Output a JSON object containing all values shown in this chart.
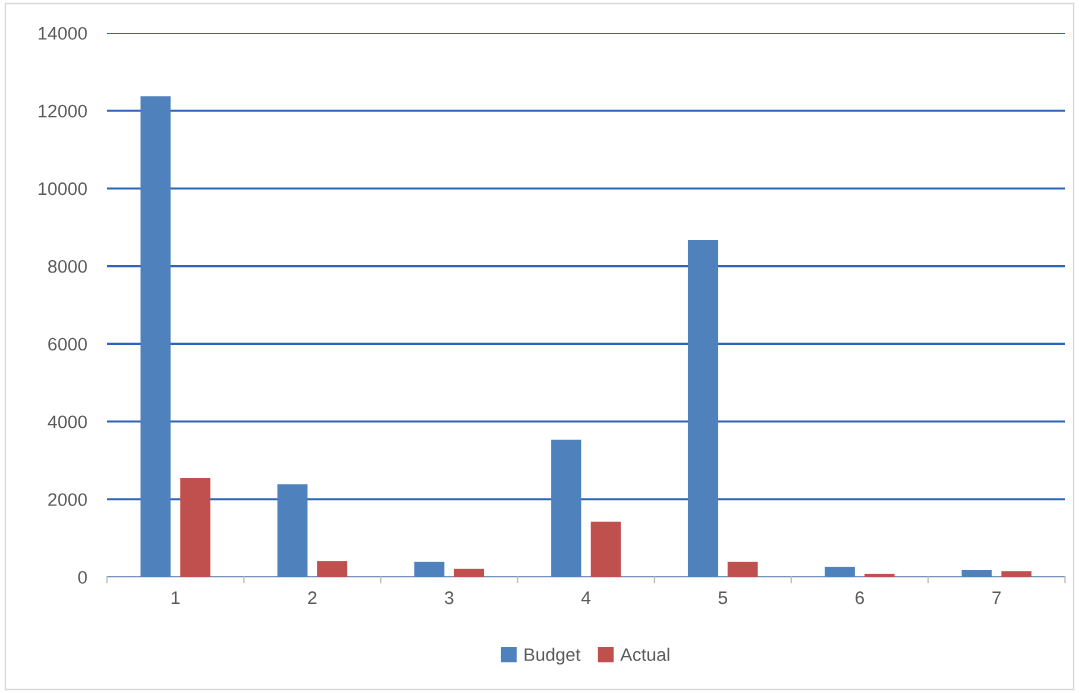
{
  "chart_data": {
    "type": "bar",
    "categories": [
      "1",
      "2",
      "3",
      "4",
      "5",
      "6",
      "7"
    ],
    "series": [
      {
        "name": "Budget",
        "color": "#4f81bd",
        "values": [
          12370,
          2390,
          390,
          3530,
          8670,
          260,
          180
        ]
      },
      {
        "name": "Actual",
        "color": "#c0504d",
        "values": [
          2550,
          410,
          210,
          1420,
          390,
          80,
          150
        ]
      }
    ],
    "ylim": [
      0,
      14000
    ],
    "yticks": [
      0,
      2000,
      4000,
      6000,
      8000,
      10000,
      12000,
      14000
    ],
    "grid": "y",
    "legend": "bottom"
  }
}
